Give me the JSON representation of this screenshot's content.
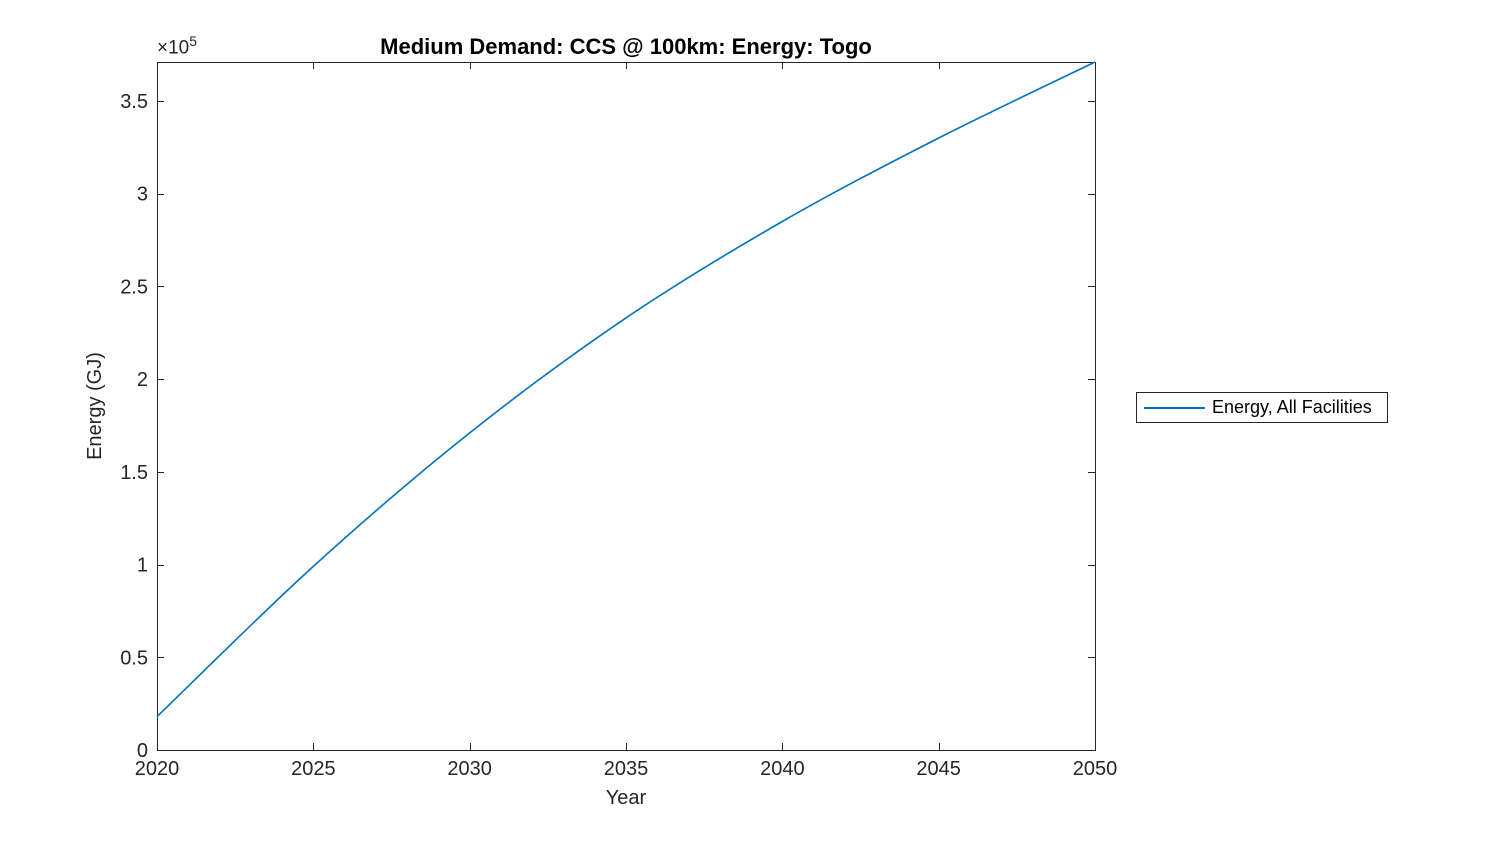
{
  "figure": {
    "background": "#ffffff",
    "axis_color": "#262626",
    "title": "Medium Demand: CCS @ 100km: Energy: Togo",
    "multiplier_base": "×10",
    "multiplier_exponent": "5"
  },
  "legend": {
    "label": "Energy, All Facilities",
    "line_color": "#0072BD"
  },
  "chart_data": {
    "type": "line",
    "title": "Medium Demand: CCS @ 100km: Energy: Togo",
    "xlabel": "Year",
    "ylabel": "Energy (GJ)",
    "y_axis_multiplier": "x10^5",
    "x": [
      2020,
      2025,
      2030,
      2035,
      2040,
      2045,
      2050
    ],
    "series": [
      {
        "name": "Energy, All Facilities",
        "color": "#0072BD",
        "values": [
          18000,
          99000,
          171000,
          233000,
          285000,
          330000,
          371000
        ]
      }
    ],
    "xlim": [
      2020,
      2050
    ],
    "ylim": [
      0,
      371000
    ],
    "x_ticks": [
      2020,
      2025,
      2030,
      2035,
      2040,
      2045,
      2050
    ],
    "x_tick_labels": [
      "2020",
      "2025",
      "2030",
      "2035",
      "2040",
      "2045",
      "2050"
    ],
    "y_ticks": [
      0,
      50000,
      100000,
      150000,
      200000,
      250000,
      300000,
      350000
    ],
    "y_tick_labels": [
      "0",
      "0.5",
      "1",
      "1.5",
      "2",
      "2.5",
      "3",
      "3.5"
    ],
    "grid": false,
    "legend_position": "right-outside"
  }
}
